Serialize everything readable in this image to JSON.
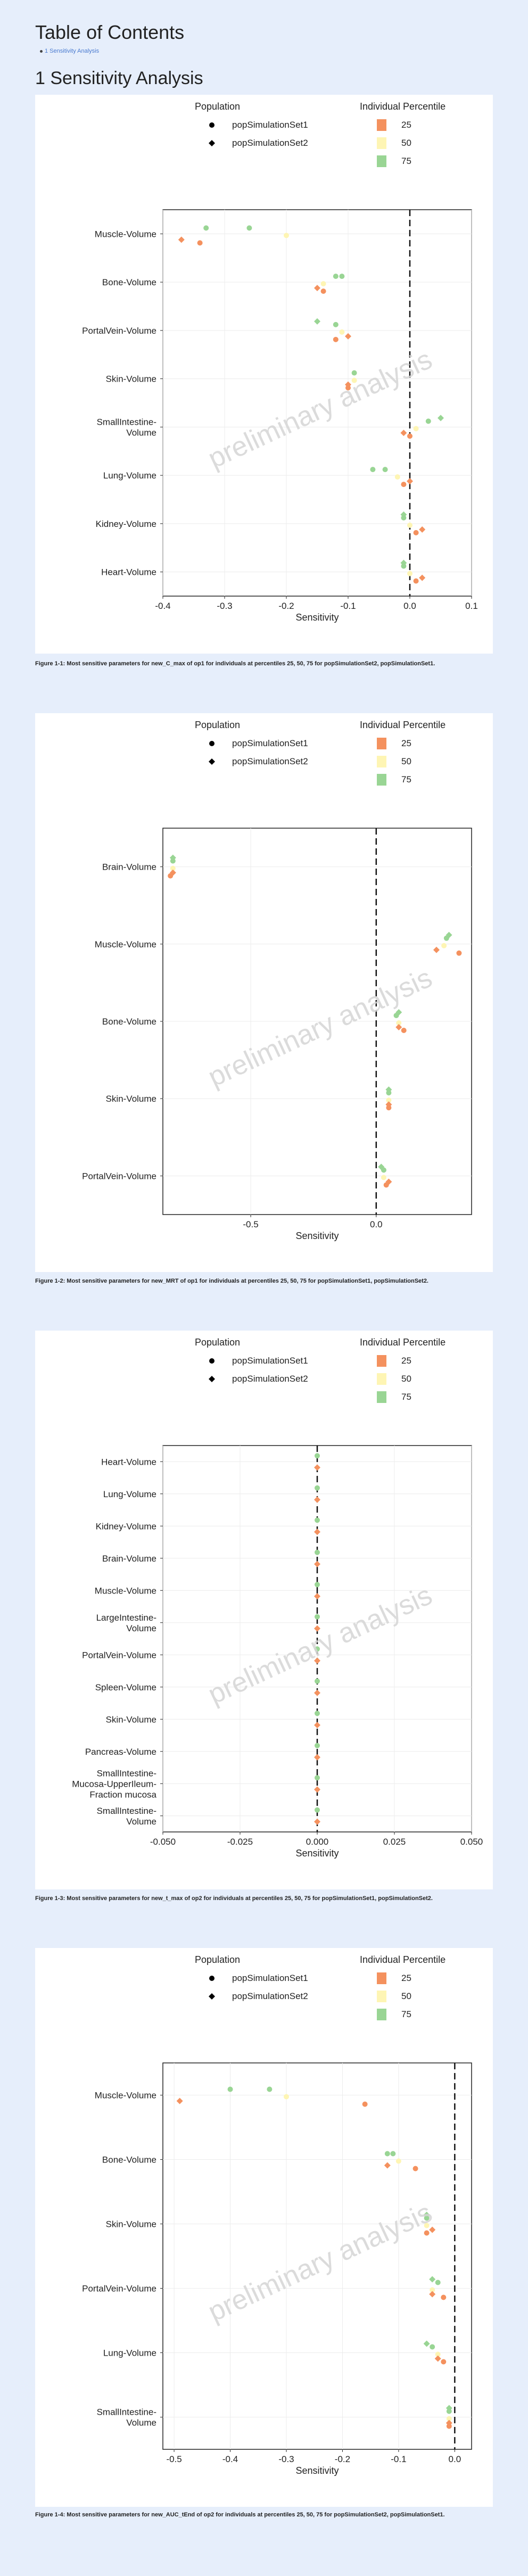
{
  "toc": {
    "title": "Table of Contents",
    "item": "1 Sensitivity Analysis"
  },
  "section": {
    "title": "1 Sensitivity Analysis"
  },
  "watermark": "preliminary analysis",
  "legend": {
    "population_title": "Population",
    "populations": [
      "popSimulationSet1",
      "popSimulationSet2"
    ],
    "percentile_title": "Individual Percentile",
    "percentiles": [
      "25",
      "50",
      "75"
    ],
    "colors": {
      "25": "#f4915e",
      "50": "#fef5b4",
      "75": "#99d594"
    }
  },
  "figures": [
    {
      "caption": "Figure 1-1: Most sensitive parameters for new_C_max of op1 for individuals at percentiles 25, 50, 75 for popSimulationSet2, popSimulationSet1.",
      "chart_data": {
        "type": "scatter",
        "xlabel": "Sensitivity",
        "xlim": [
          -0.4,
          0.1
        ],
        "xticks": [
          "-0.4",
          "-0.3",
          "-0.2",
          "-0.1",
          "0.0",
          "0.1"
        ],
        "categories": [
          "Muscle-Volume",
          "Bone-Volume",
          "PortalVein-Volume",
          "Skin-Volume",
          "SmallIntestine-\nVolume",
          "Lung-Volume",
          "Kidney-Volume",
          "Heart-Volume"
        ],
        "points": [
          {
            "cat": 0,
            "x": -0.33,
            "p": "75",
            "s": 1
          },
          {
            "cat": 0,
            "x": -0.26,
            "p": "75",
            "s": 1
          },
          {
            "cat": 0,
            "x": -0.2,
            "p": "50",
            "s": 1
          },
          {
            "cat": 0,
            "x": -0.37,
            "p": "25",
            "s": 2
          },
          {
            "cat": 0,
            "x": -0.34,
            "p": "25",
            "s": 1
          },
          {
            "cat": 1,
            "x": -0.12,
            "p": "75",
            "s": 1
          },
          {
            "cat": 1,
            "x": -0.11,
            "p": "75",
            "s": 1
          },
          {
            "cat": 1,
            "x": -0.14,
            "p": "50",
            "s": 1
          },
          {
            "cat": 1,
            "x": -0.15,
            "p": "25",
            "s": 2
          },
          {
            "cat": 1,
            "x": -0.14,
            "p": "25",
            "s": 1
          },
          {
            "cat": 2,
            "x": -0.15,
            "p": "75",
            "s": 2
          },
          {
            "cat": 2,
            "x": -0.12,
            "p": "75",
            "s": 1
          },
          {
            "cat": 2,
            "x": -0.11,
            "p": "50",
            "s": 1
          },
          {
            "cat": 2,
            "x": -0.12,
            "p": "25",
            "s": 1
          },
          {
            "cat": 2,
            "x": -0.1,
            "p": "25",
            "s": 2
          },
          {
            "cat": 3,
            "x": -0.09,
            "p": "75",
            "s": 1
          },
          {
            "cat": 3,
            "x": -0.09,
            "p": "50",
            "s": 1
          },
          {
            "cat": 3,
            "x": -0.1,
            "p": "25",
            "s": 2
          },
          {
            "cat": 3,
            "x": -0.1,
            "p": "25",
            "s": 1
          },
          {
            "cat": 4,
            "x": 0.05,
            "p": "75",
            "s": 2
          },
          {
            "cat": 4,
            "x": 0.03,
            "p": "75",
            "s": 1
          },
          {
            "cat": 4,
            "x": 0.01,
            "p": "50",
            "s": 1
          },
          {
            "cat": 4,
            "x": -0.01,
            "p": "25",
            "s": 2
          },
          {
            "cat": 4,
            "x": 0.0,
            "p": "25",
            "s": 1
          },
          {
            "cat": 5,
            "x": -0.06,
            "p": "75",
            "s": 1
          },
          {
            "cat": 5,
            "x": -0.04,
            "p": "75",
            "s": 1
          },
          {
            "cat": 5,
            "x": -0.02,
            "p": "50",
            "s": 1
          },
          {
            "cat": 5,
            "x": 0.0,
            "p": "25",
            "s": 2
          },
          {
            "cat": 5,
            "x": -0.01,
            "p": "25",
            "s": 1
          },
          {
            "cat": 6,
            "x": -0.01,
            "p": "75",
            "s": 2
          },
          {
            "cat": 6,
            "x": -0.01,
            "p": "75",
            "s": 1
          },
          {
            "cat": 6,
            "x": 0.0,
            "p": "50",
            "s": 1
          },
          {
            "cat": 6,
            "x": 0.02,
            "p": "25",
            "s": 2
          },
          {
            "cat": 6,
            "x": 0.01,
            "p": "25",
            "s": 1
          },
          {
            "cat": 7,
            "x": -0.01,
            "p": "75",
            "s": 2
          },
          {
            "cat": 7,
            "x": -0.01,
            "p": "75",
            "s": 1
          },
          {
            "cat": 7,
            "x": 0.0,
            "p": "50",
            "s": 1
          },
          {
            "cat": 7,
            "x": 0.02,
            "p": "25",
            "s": 2
          },
          {
            "cat": 7,
            "x": 0.01,
            "p": "25",
            "s": 1
          }
        ]
      }
    },
    {
      "caption": "Figure 1-2: Most sensitive parameters for new_MRT of op1 for individuals at percentiles 25, 50, 75 for popSimulationSet1, popSimulationSet2.",
      "chart_data": {
        "type": "scatter",
        "xlabel": "Sensitivity",
        "xlim": [
          -0.85,
          0.38
        ],
        "xticks": [
          "-0.5",
          "0.0"
        ],
        "xtick_values": [
          -0.5,
          0.0
        ],
        "categories": [
          "Brain-Volume",
          "Muscle-Volume",
          "Bone-Volume",
          "Skin-Volume",
          "PortalVein-Volume"
        ],
        "points": [
          {
            "cat": 0,
            "x": -0.81,
            "p": "75",
            "s": 2
          },
          {
            "cat": 0,
            "x": -0.81,
            "p": "75",
            "s": 1
          },
          {
            "cat": 0,
            "x": -0.81,
            "p": "50",
            "s": 1
          },
          {
            "cat": 0,
            "x": -0.81,
            "p": "25",
            "s": 2
          },
          {
            "cat": 0,
            "x": -0.82,
            "p": "25",
            "s": 1
          },
          {
            "cat": 1,
            "x": 0.29,
            "p": "75",
            "s": 2
          },
          {
            "cat": 1,
            "x": 0.28,
            "p": "75",
            "s": 1
          },
          {
            "cat": 1,
            "x": 0.27,
            "p": "50",
            "s": 1
          },
          {
            "cat": 1,
            "x": 0.24,
            "p": "25",
            "s": 2
          },
          {
            "cat": 1,
            "x": 0.33,
            "p": "25",
            "s": 1
          },
          {
            "cat": 2,
            "x": 0.09,
            "p": "75",
            "s": 2
          },
          {
            "cat": 2,
            "x": 0.08,
            "p": "75",
            "s": 1
          },
          {
            "cat": 2,
            "x": 0.09,
            "p": "50",
            "s": 1
          },
          {
            "cat": 2,
            "x": 0.09,
            "p": "25",
            "s": 2
          },
          {
            "cat": 2,
            "x": 0.11,
            "p": "25",
            "s": 1
          },
          {
            "cat": 3,
            "x": 0.05,
            "p": "75",
            "s": 2
          },
          {
            "cat": 3,
            "x": 0.05,
            "p": "75",
            "s": 1
          },
          {
            "cat": 3,
            "x": 0.05,
            "p": "50",
            "s": 1
          },
          {
            "cat": 3,
            "x": 0.05,
            "p": "25",
            "s": 2
          },
          {
            "cat": 3,
            "x": 0.05,
            "p": "25",
            "s": 1
          },
          {
            "cat": 4,
            "x": 0.02,
            "p": "75",
            "s": 2
          },
          {
            "cat": 4,
            "x": 0.03,
            "p": "75",
            "s": 1
          },
          {
            "cat": 4,
            "x": 0.03,
            "p": "50",
            "s": 1
          },
          {
            "cat": 4,
            "x": 0.05,
            "p": "25",
            "s": 2
          },
          {
            "cat": 4,
            "x": 0.04,
            "p": "25",
            "s": 1
          }
        ]
      }
    },
    {
      "caption": "Figure 1-3: Most sensitive parameters for new_t_max of op2 for individuals at percentiles 25, 50, 75 for popSimulationSet1, popSimulationSet2.",
      "chart_data": {
        "type": "scatter",
        "xlabel": "Sensitivity",
        "xlim": [
          -0.05,
          0.05
        ],
        "xticks": [
          "-0.050",
          "-0.025",
          "0.000",
          "0.025",
          "0.050"
        ],
        "xtick_values": [
          -0.05,
          -0.025,
          0.0,
          0.025,
          0.05
        ],
        "categories": [
          "Heart-Volume",
          "Lung-Volume",
          "Kidney-Volume",
          "Brain-Volume",
          "Muscle-Volume",
          "LargeIntestine-\nVolume",
          "PortalVein-Volume",
          "Spleen-Volume",
          "Skin-Volume",
          "Pancreas-Volume",
          "SmallIntestine-\nMucosa-UpperIleum-\nFraction mucosa",
          "SmallIntestine-\nVolume"
        ],
        "points": [
          {
            "cat": 0,
            "x": 0.0,
            "p": "75",
            "s": 1
          },
          {
            "cat": 0,
            "x": 0.0,
            "p": "25",
            "s": 2
          },
          {
            "cat": 1,
            "x": 0.0,
            "p": "75",
            "s": 1
          },
          {
            "cat": 1,
            "x": 0.0,
            "p": "25",
            "s": 2
          },
          {
            "cat": 2,
            "x": 0.0,
            "p": "75",
            "s": 1
          },
          {
            "cat": 2,
            "x": 0.0,
            "p": "25",
            "s": 2
          },
          {
            "cat": 3,
            "x": 0.0,
            "p": "75",
            "s": 1
          },
          {
            "cat": 3,
            "x": 0.0,
            "p": "25",
            "s": 2
          },
          {
            "cat": 4,
            "x": 0.0,
            "p": "75",
            "s": 1
          },
          {
            "cat": 4,
            "x": 0.0,
            "p": "25",
            "s": 2
          },
          {
            "cat": 5,
            "x": 0.0,
            "p": "75",
            "s": 1
          },
          {
            "cat": 5,
            "x": 0.0,
            "p": "25",
            "s": 2
          },
          {
            "cat": 6,
            "x": 0.0,
            "p": "75",
            "s": 1
          },
          {
            "cat": 6,
            "x": 0.0,
            "p": "25",
            "s": 2
          },
          {
            "cat": 7,
            "x": 0.0,
            "p": "75",
            "s": 1
          },
          {
            "cat": 7,
            "x": 0.0,
            "p": "25",
            "s": 2
          },
          {
            "cat": 8,
            "x": 0.0,
            "p": "75",
            "s": 1
          },
          {
            "cat": 8,
            "x": 0.0,
            "p": "25",
            "s": 2
          },
          {
            "cat": 9,
            "x": 0.0,
            "p": "75",
            "s": 1
          },
          {
            "cat": 9,
            "x": 0.0,
            "p": "25",
            "s": 2
          },
          {
            "cat": 10,
            "x": 0.0,
            "p": "75",
            "s": 1
          },
          {
            "cat": 10,
            "x": 0.0,
            "p": "25",
            "s": 2
          },
          {
            "cat": 11,
            "x": 0.0,
            "p": "75",
            "s": 1
          },
          {
            "cat": 11,
            "x": 0.0,
            "p": "25",
            "s": 2
          }
        ]
      }
    },
    {
      "caption": "Figure 1-4: Most sensitive parameters for new_AUC_tEnd of op2 for individuals at percentiles 25, 50, 75 for popSimulationSet2, popSimulationSet1.",
      "chart_data": {
        "type": "scatter",
        "xlabel": "Sensitivity",
        "xlim": [
          -0.52,
          0.03
        ],
        "xticks": [
          "-0.5",
          "-0.4",
          "-0.3",
          "-0.2",
          "-0.1",
          "0.0"
        ],
        "xtick_values": [
          -0.5,
          -0.4,
          -0.3,
          -0.2,
          -0.1,
          0.0
        ],
        "categories": [
          "Muscle-Volume",
          "Bone-Volume",
          "Skin-Volume",
          "PortalVein-Volume",
          "Lung-Volume",
          "SmallIntestine-\nVolume"
        ],
        "points": [
          {
            "cat": 0,
            "x": -0.4,
            "p": "75",
            "s": 1
          },
          {
            "cat": 0,
            "x": -0.33,
            "p": "75",
            "s": 1
          },
          {
            "cat": 0,
            "x": -0.3,
            "p": "50",
            "s": 1
          },
          {
            "cat": 0,
            "x": -0.49,
            "p": "25",
            "s": 2
          },
          {
            "cat": 0,
            "x": -0.16,
            "p": "25",
            "s": 1
          },
          {
            "cat": 1,
            "x": -0.12,
            "p": "75",
            "s": 1
          },
          {
            "cat": 1,
            "x": -0.11,
            "p": "75",
            "s": 1
          },
          {
            "cat": 1,
            "x": -0.1,
            "p": "50",
            "s": 1
          },
          {
            "cat": 1,
            "x": -0.12,
            "p": "25",
            "s": 2
          },
          {
            "cat": 1,
            "x": -0.07,
            "p": "25",
            "s": 1
          },
          {
            "cat": 2,
            "x": -0.05,
            "p": "75",
            "s": 2
          },
          {
            "cat": 2,
            "x": -0.05,
            "p": "75",
            "s": 1
          },
          {
            "cat": 2,
            "x": -0.05,
            "p": "50",
            "s": 1
          },
          {
            "cat": 2,
            "x": -0.04,
            "p": "25",
            "s": 2
          },
          {
            "cat": 2,
            "x": -0.05,
            "p": "25",
            "s": 1
          },
          {
            "cat": 3,
            "x": -0.04,
            "p": "75",
            "s": 2
          },
          {
            "cat": 3,
            "x": -0.03,
            "p": "75",
            "s": 1
          },
          {
            "cat": 3,
            "x": -0.04,
            "p": "50",
            "s": 1
          },
          {
            "cat": 3,
            "x": -0.04,
            "p": "25",
            "s": 2
          },
          {
            "cat": 3,
            "x": -0.02,
            "p": "25",
            "s": 1
          },
          {
            "cat": 4,
            "x": -0.05,
            "p": "75",
            "s": 2
          },
          {
            "cat": 4,
            "x": -0.04,
            "p": "75",
            "s": 1
          },
          {
            "cat": 4,
            "x": -0.03,
            "p": "50",
            "s": 1
          },
          {
            "cat": 4,
            "x": -0.03,
            "p": "25",
            "s": 2
          },
          {
            "cat": 4,
            "x": -0.02,
            "p": "25",
            "s": 1
          },
          {
            "cat": 5,
            "x": -0.01,
            "p": "75",
            "s": 2
          },
          {
            "cat": 5,
            "x": -0.01,
            "p": "75",
            "s": 1
          },
          {
            "cat": 5,
            "x": -0.01,
            "p": "50",
            "s": 1
          },
          {
            "cat": 5,
            "x": -0.01,
            "p": "25",
            "s": 2
          },
          {
            "cat": 5,
            "x": -0.01,
            "p": "25",
            "s": 1
          }
        ]
      }
    }
  ]
}
